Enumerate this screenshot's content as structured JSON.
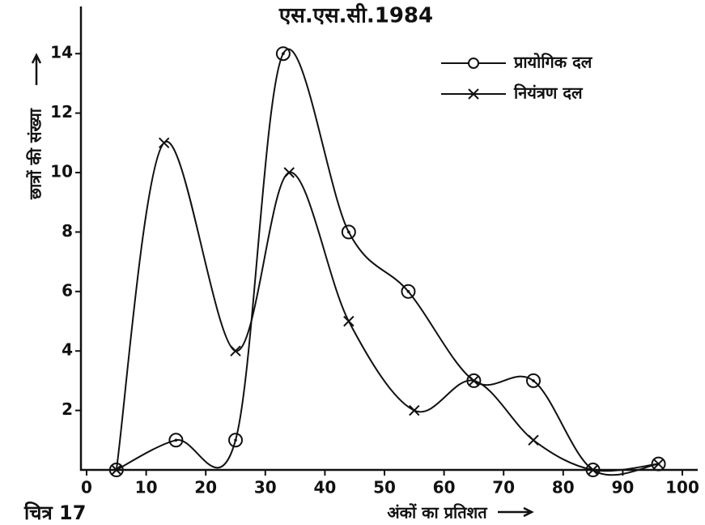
{
  "chart_data": {
    "type": "line",
    "title": "एस.एस.सी.1984",
    "caption": "चित्र 17",
    "x_label": "अंकों का प्रतिशत",
    "y_label": "छात्रों की संख्या",
    "xlim": [
      0,
      102
    ],
    "ylim": [
      0,
      15.5
    ],
    "xticks": [
      0,
      10,
      20,
      30,
      40,
      50,
      60,
      70,
      80,
      90,
      100
    ],
    "yticks": [
      2,
      4,
      6,
      8,
      10,
      12,
      14
    ],
    "legend": "upper right",
    "series": [
      {
        "name": "प्रायोगिक दल",
        "marker": "circle",
        "color": "#111",
        "x": [
          5,
          15,
          25,
          33,
          44,
          54,
          65,
          75,
          85,
          96
        ],
        "values": [
          0,
          1,
          1,
          14,
          8,
          6,
          3,
          3,
          0,
          0.2
        ]
      },
      {
        "name": "नियंत्रण दल",
        "marker": "cross",
        "color": "#111",
        "x": [
          5,
          13,
          25,
          34,
          44,
          55,
          65,
          75,
          85,
          96
        ],
        "values": [
          0,
          11,
          4,
          10,
          5,
          2,
          3,
          1,
          0,
          0.2
        ]
      }
    ]
  }
}
